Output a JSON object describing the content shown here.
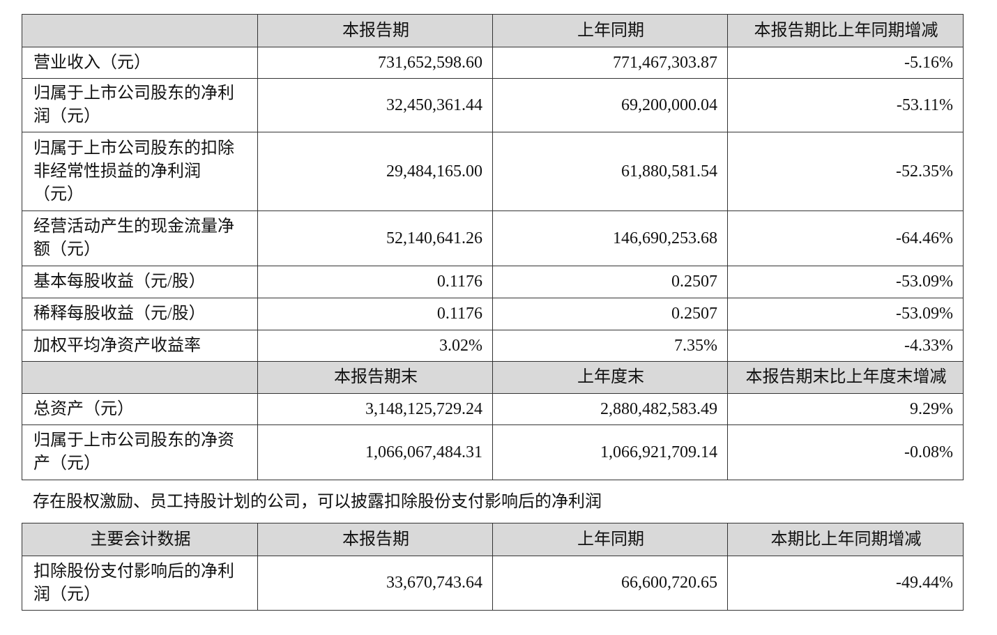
{
  "table1": {
    "header": [
      "本报告期",
      "上年同期",
      "本报告期比上年同期增减"
    ],
    "rows": [
      [
        "营业收入（元）",
        "731,652,598.60",
        "771,467,303.87",
        "-5.16%"
      ],
      [
        "归属于上市公司股东的净利润（元）",
        "32,450,361.44",
        "69,200,000.04",
        "-53.11%"
      ],
      [
        "归属于上市公司股东的扣除非经常性损益的净利润（元）",
        "29,484,165.00",
        "61,880,581.54",
        "-52.35%"
      ],
      [
        "经营活动产生的现金流量净额（元）",
        "52,140,641.26",
        "146,690,253.68",
        "-64.46%"
      ],
      [
        "基本每股收益（元/股）",
        "0.1176",
        "0.2507",
        "-53.09%"
      ],
      [
        "稀释每股收益（元/股）",
        "0.1176",
        "0.2507",
        "-53.09%"
      ],
      [
        "加权平均净资产收益率",
        "3.02%",
        "7.35%",
        "-4.33%"
      ]
    ],
    "header2": [
      "本报告期末",
      "上年度末",
      "本报告期末比上年度末增减"
    ],
    "rows2": [
      [
        "总资产（元）",
        "3,148,125,729.24",
        "2,880,482,583.49",
        "9.29%"
      ],
      [
        "归属于上市公司股东的净资产（元）",
        "1,066,067,484.31",
        "1,066,921,709.14",
        "-0.08%"
      ]
    ]
  },
  "note": "存在股权激励、员工持股计划的公司，可以披露扣除股份支付影响后的净利润",
  "table2": {
    "header": [
      "主要会计数据",
      "本报告期",
      "上年同期",
      "本期比上年同期增减"
    ],
    "rows": [
      [
        "扣除股份支付影响后的净利润（元）",
        "33,670,743.64",
        "66,600,720.65",
        "-49.44%"
      ]
    ]
  }
}
